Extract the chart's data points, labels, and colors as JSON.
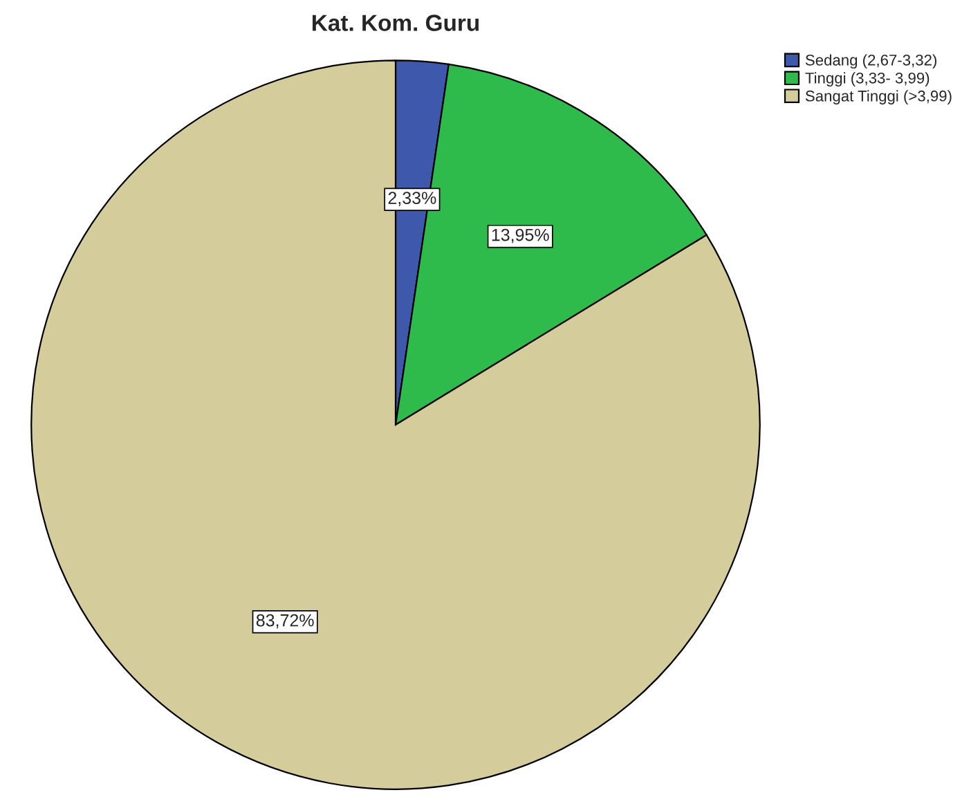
{
  "chart_data": {
    "type": "pie",
    "title": "Kat. Kom. Guru",
    "categories": [
      "Sedang (2,67-3,32)",
      "Tinggi (3,33- 3,99)",
      "Sangat Tinggi (>3,99)"
    ],
    "values": [
      2.33,
      13.95,
      83.72
    ],
    "colors": [
      "#3e58ac",
      "#2fbb4b",
      "#d4cd9b"
    ],
    "value_labels": [
      "2,33%",
      "13,95%",
      "83,72%"
    ],
    "legend": "top right"
  }
}
